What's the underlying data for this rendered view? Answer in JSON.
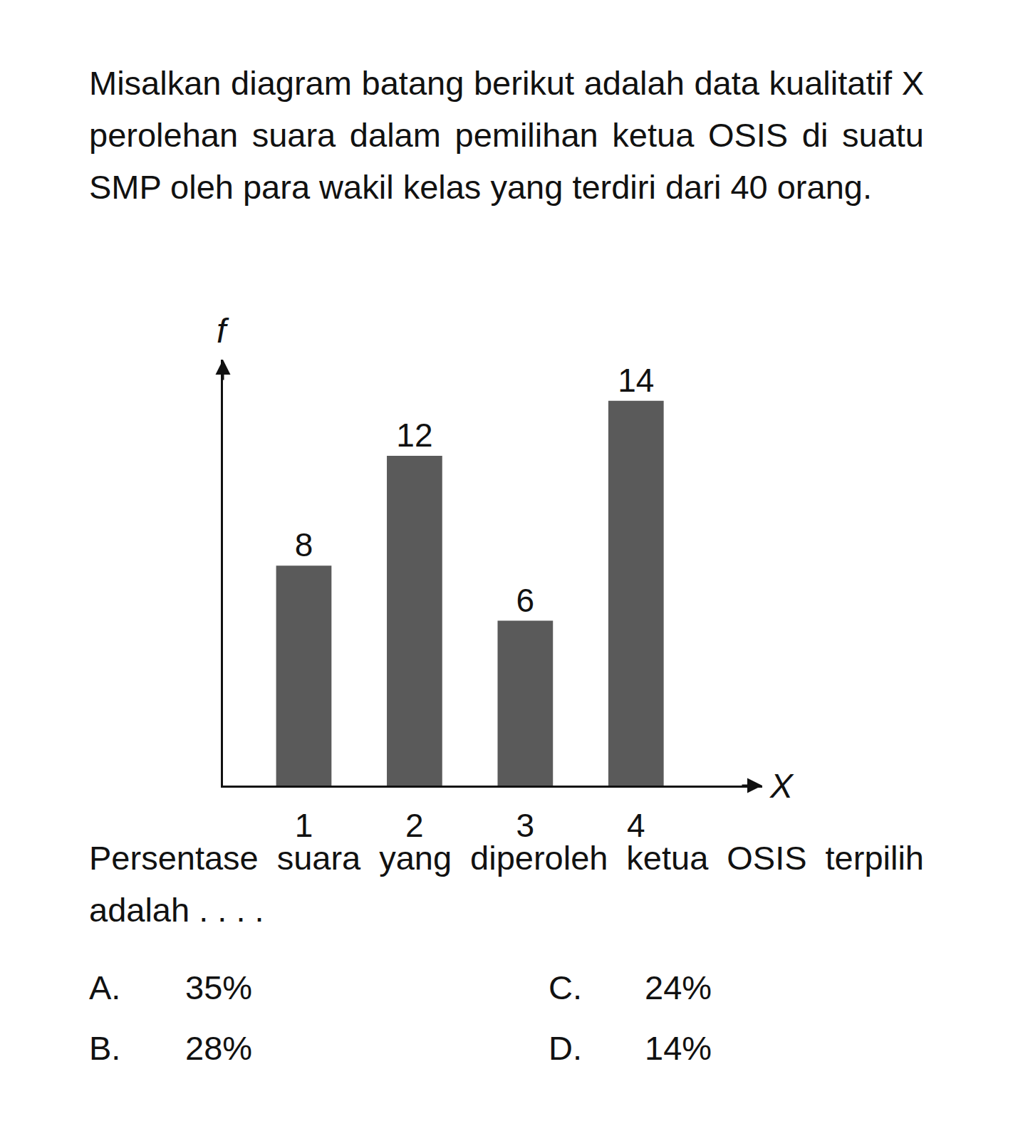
{
  "question": "Misalkan diagram batang berikut adalah data kualitatif X perolehan suara dalam pemilihan ketua OSIS di suatu SMP oleh para wakil kelas yang terdiri dari 40 orang.",
  "chart_data": {
    "type": "bar",
    "x_label": "X",
    "y_label": "f",
    "categories": [
      "1",
      "2",
      "3",
      "4"
    ],
    "values": [
      8,
      12,
      6,
      14
    ],
    "color": "#5a5a5a",
    "ylim": [
      0,
      15.5
    ],
    "yticks": [],
    "grid": false,
    "data_labels": true,
    "tick_labels": "x"
  },
  "prompt": "Persentase suara yang diperoleh ketua OSIS terpilih adalah . . . .",
  "options": [
    {
      "label": "A.",
      "text": "35%"
    },
    {
      "label": "B.",
      "text": "28%"
    },
    {
      "label": "C.",
      "text": "24%"
    },
    {
      "label": "D.",
      "text": "14%"
    }
  ]
}
